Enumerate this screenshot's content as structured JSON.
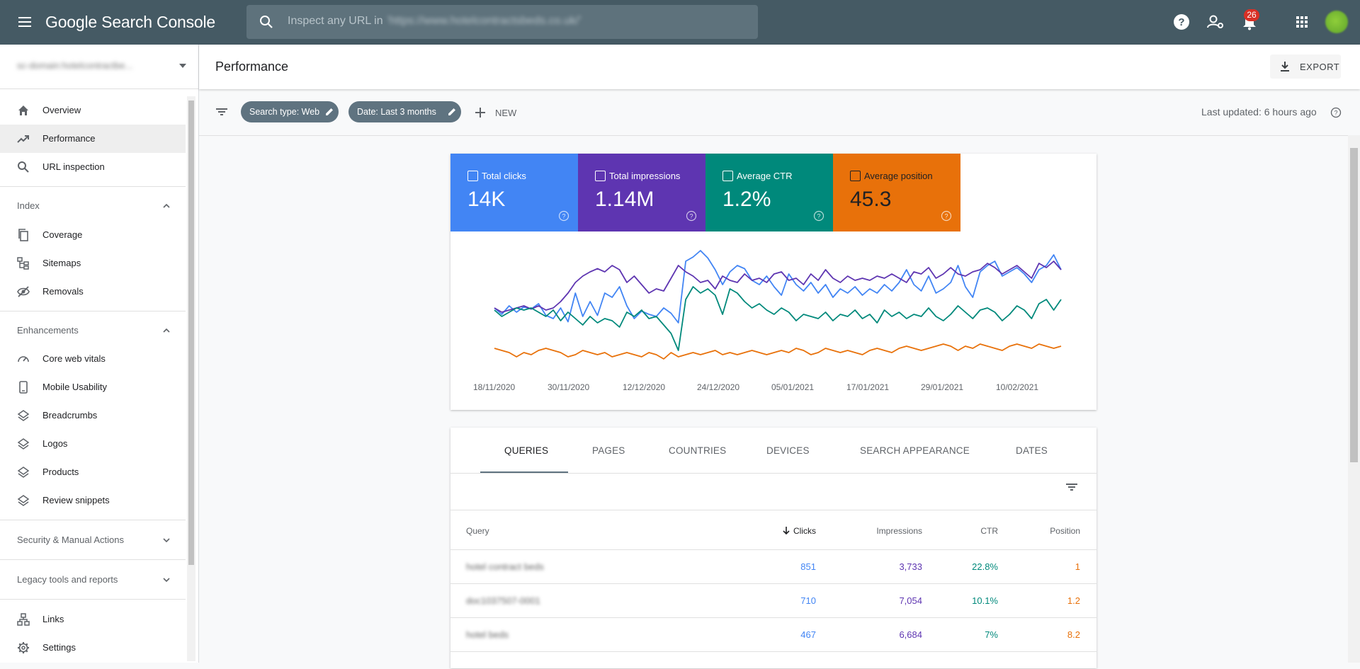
{
  "app": {
    "title_google": "Google",
    "title_product": "Search Console",
    "search_placeholder": "Inspect any URL in",
    "search_property": "'https://www.hotelcontractsbeds.co.uk/'",
    "notifications_count": "26"
  },
  "sidebar": {
    "property": "sc-domain:hotelcontractbe...",
    "items_top": [
      {
        "label": "Overview",
        "icon": "home-icon"
      },
      {
        "label": "Performance",
        "icon": "trending-up-icon",
        "active": true
      },
      {
        "label": "URL inspection",
        "icon": "search-icon"
      }
    ],
    "index": {
      "label": "Index",
      "items": [
        {
          "label": "Coverage",
          "icon": "coverage-icon"
        },
        {
          "label": "Sitemaps",
          "icon": "sitemap-icon"
        },
        {
          "label": "Removals",
          "icon": "removals-icon"
        }
      ]
    },
    "enhancements": {
      "label": "Enhancements",
      "items": [
        {
          "label": "Core web vitals",
          "icon": "speed-icon"
        },
        {
          "label": "Mobile Usability",
          "icon": "phone-icon"
        },
        {
          "label": "Breadcrumbs",
          "icon": "layers-icon"
        },
        {
          "label": "Logos",
          "icon": "layers-icon"
        },
        {
          "label": "Products",
          "icon": "layers-icon"
        },
        {
          "label": "Review snippets",
          "icon": "layers-icon"
        }
      ]
    },
    "security": {
      "label": "Security & Manual Actions"
    },
    "legacy": {
      "label": "Legacy tools and reports"
    },
    "items_bottom": [
      {
        "label": "Links",
        "icon": "links-icon"
      },
      {
        "label": "Settings",
        "icon": "gear-icon"
      }
    ]
  },
  "header": {
    "title": "Performance",
    "export_label": "EXPORT"
  },
  "filters": {
    "chips": [
      "Search type: Web",
      "Date: Last 3 months"
    ],
    "new_label": "NEW",
    "last_updated": "Last updated: 6 hours ago"
  },
  "metrics": [
    {
      "label": "Total clicks",
      "value": "14K",
      "color": "#4285f4",
      "checked": true
    },
    {
      "label": "Total impressions",
      "value": "1.14M",
      "color": "#5e35b1",
      "checked": true
    },
    {
      "label": "Average CTR",
      "value": "1.2%",
      "color": "#00897b",
      "checked": true
    },
    {
      "label": "Average position",
      "value": "45.3",
      "color": "#e8710a",
      "checked": true
    }
  ],
  "chart_data": {
    "type": "line",
    "x_labels": [
      "18/11/2020",
      "30/11/2020",
      "12/12/2020",
      "24/12/2020",
      "05/01/2021",
      "17/01/2021",
      "29/01/2021",
      "10/02/2021"
    ],
    "series": [
      {
        "name": "Total clicks",
        "color": "#4285f4",
        "values": [
          48,
          42,
          50,
          44,
          49,
          47,
          52,
          41,
          38,
          48,
          35,
          62,
          40,
          54,
          41,
          62,
          58,
          68,
          50,
          38,
          45,
          42,
          40,
          48,
          43,
          34,
          92,
          96,
          102,
          95,
          84,
          70,
          82,
          88,
          85,
          74,
          70,
          78,
          68,
          60,
          80,
          70,
          64,
          72,
          62,
          70,
          58,
          66,
          62,
          68,
          60,
          66,
          62,
          70,
          64,
          72,
          84,
          70,
          64,
          78,
          62,
          66,
          72,
          88,
          68,
          58,
          82,
          88,
          92,
          78,
          82,
          86,
          80,
          72,
          84,
          88,
          98,
          84
        ]
      },
      {
        "name": "Total impressions",
        "color": "#5e35b1",
        "values": [
          48,
          44,
          46,
          48,
          50,
          47,
          50,
          46,
          48,
          54,
          62,
          72,
          78,
          82,
          85,
          82,
          88,
          84,
          72,
          78,
          70,
          62,
          66,
          64,
          76,
          88,
          82,
          78,
          72,
          74,
          66,
          78,
          74,
          72,
          80,
          74,
          76,
          72,
          80,
          82,
          74,
          76,
          70,
          80,
          74,
          84,
          76,
          72,
          78,
          74,
          76,
          74,
          78,
          76,
          80,
          76,
          72,
          82,
          80,
          86,
          76,
          80,
          86,
          80,
          78,
          82,
          84,
          90,
          86,
          80,
          84,
          88,
          82,
          76,
          90,
          86,
          92,
          84
        ]
      },
      {
        "name": "Average CTR",
        "color": "#00897b",
        "values": [
          46,
          40,
          44,
          48,
          46,
          48,
          44,
          40,
          46,
          36,
          44,
          38,
          32,
          40,
          34,
          38,
          36,
          30,
          44,
          40,
          46,
          38,
          40,
          32,
          24,
          8,
          56,
          68,
          62,
          66,
          60,
          42,
          66,
          62,
          54,
          48,
          52,
          46,
          42,
          48,
          44,
          36,
          42,
          40,
          38,
          44,
          36,
          42,
          40,
          46,
          38,
          42,
          34,
          46,
          40,
          44,
          38,
          42,
          40,
          48,
          40,
          36,
          42,
          50,
          44,
          38,
          46,
          48,
          44,
          36,
          42,
          50,
          46,
          38,
          52,
          56,
          46,
          56
        ]
      },
      {
        "name": "Average position",
        "color": "#e8710a",
        "values": [
          10,
          8,
          6,
          2,
          6,
          4,
          8,
          10,
          8,
          6,
          2,
          4,
          8,
          6,
          4,
          6,
          2,
          4,
          6,
          4,
          2,
          6,
          4,
          0,
          6,
          2,
          4,
          6,
          4,
          6,
          8,
          4,
          6,
          4,
          6,
          8,
          6,
          4,
          6,
          8,
          6,
          10,
          8,
          4,
          6,
          10,
          8,
          6,
          8,
          6,
          4,
          8,
          10,
          8,
          6,
          10,
          12,
          10,
          8,
          10,
          12,
          14,
          12,
          8,
          12,
          10,
          14,
          12,
          10,
          8,
          12,
          14,
          12,
          10,
          14,
          12,
          10,
          12
        ]
      }
    ]
  },
  "tabs": [
    "QUERIES",
    "PAGES",
    "COUNTRIES",
    "DEVICES",
    "SEARCH APPEARANCE",
    "DATES"
  ],
  "table": {
    "headers": {
      "query": "Query",
      "clicks": "Clicks",
      "impressions": "Impressions",
      "ctr": "CTR",
      "position": "Position"
    },
    "rows": [
      {
        "query": "hotel contract beds",
        "clicks": "851",
        "impressions": "3,733",
        "ctr": "22.8%",
        "position": "1"
      },
      {
        "query": "doc1037507-0001",
        "clicks": "710",
        "impressions": "7,054",
        "ctr": "10.1%",
        "position": "1.2"
      },
      {
        "query": "hotel beds",
        "clicks": "467",
        "impressions": "6,684",
        "ctr": "7%",
        "position": "8.2"
      }
    ]
  }
}
